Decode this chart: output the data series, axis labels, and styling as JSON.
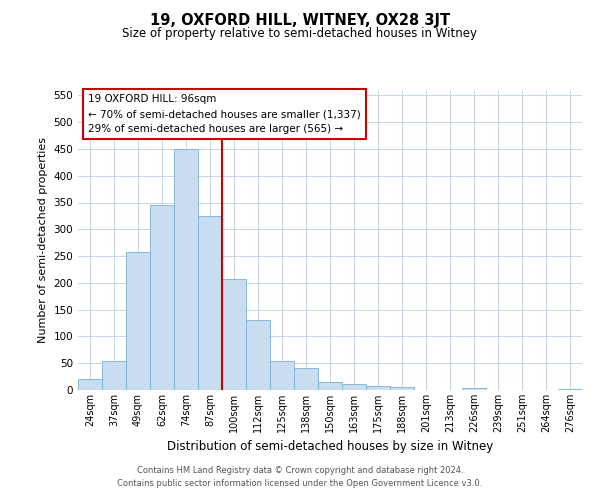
{
  "title": "19, OXFORD HILL, WITNEY, OX28 3JT",
  "subtitle": "Size of property relative to semi-detached houses in Witney",
  "xlabel": "Distribution of semi-detached houses by size in Witney",
  "ylabel": "Number of semi-detached properties",
  "categories": [
    "24sqm",
    "37sqm",
    "49sqm",
    "62sqm",
    "74sqm",
    "87sqm",
    "100sqm",
    "112sqm",
    "125sqm",
    "138sqm",
    "150sqm",
    "163sqm",
    "175sqm",
    "188sqm",
    "201sqm",
    "213sqm",
    "226sqm",
    "239sqm",
    "251sqm",
    "264sqm",
    "276sqm"
  ],
  "values": [
    20,
    55,
    258,
    345,
    450,
    325,
    208,
    130,
    55,
    42,
    15,
    12,
    8,
    5,
    0,
    0,
    3,
    0,
    0,
    0,
    2
  ],
  "bar_color": "#c8ddf0",
  "bar_edge_color": "#7bafd4",
  "vline_color": "#cc0000",
  "annotation_title": "19 OXFORD HILL: 96sqm",
  "annotation_line1": "← 70% of semi-detached houses are smaller (1,337)",
  "annotation_line2": "29% of semi-detached houses are larger (565) →",
  "annotation_box_color": "#cc0000",
  "ylim": [
    0,
    560
  ],
  "yticks": [
    0,
    50,
    100,
    150,
    200,
    250,
    300,
    350,
    400,
    450,
    500,
    550
  ],
  "footer_line1": "Contains HM Land Registry data © Crown copyright and database right 2024.",
  "footer_line2": "Contains public sector information licensed under the Open Government Licence v3.0.",
  "background_color": "#ffffff",
  "grid_color": "#c0cfe0"
}
